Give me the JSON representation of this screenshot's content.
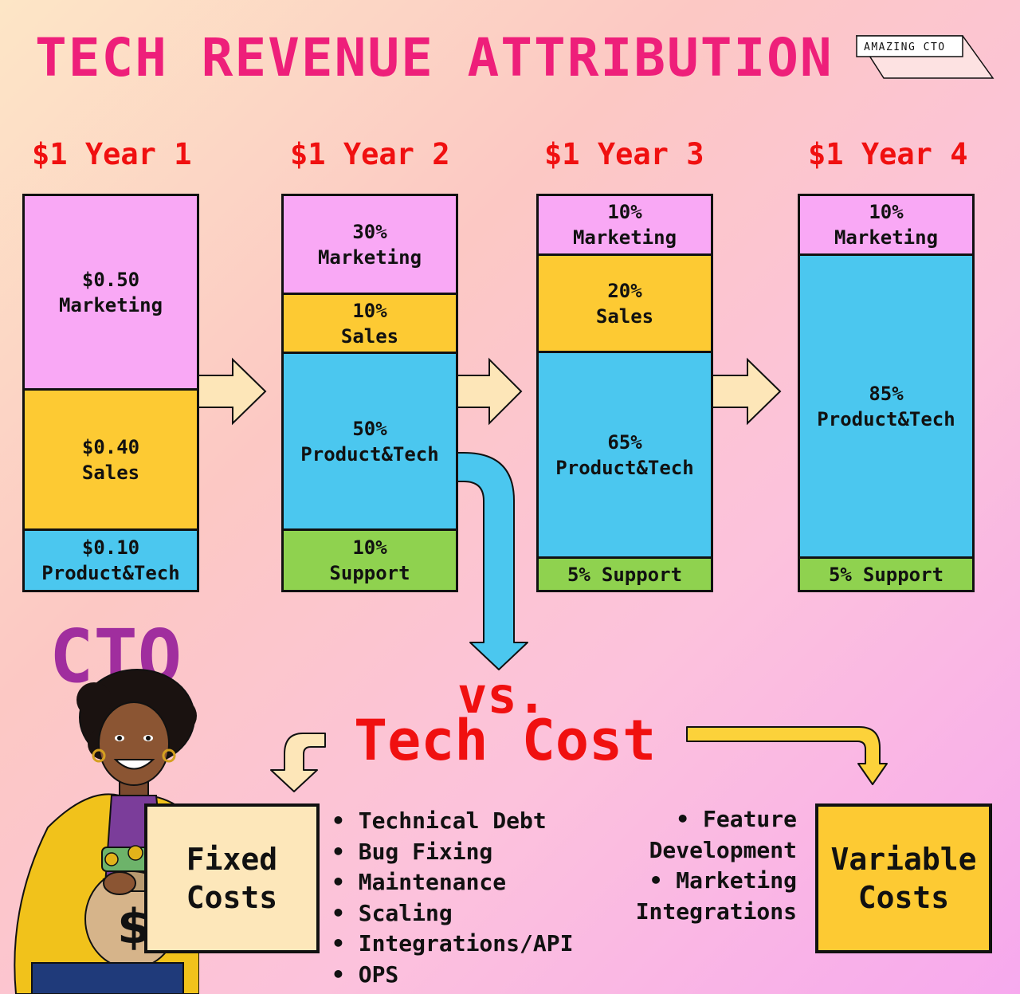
{
  "title": "TECH REVENUE ATTRIBUTION",
  "logo": {
    "text": "AMAZING CTO"
  },
  "years": [
    {
      "label": "$1 Year 1",
      "segments": [
        {
          "value": "$0.50",
          "label": "Marketing",
          "color": "#f9a8f5"
        },
        {
          "value": "$0.40",
          "label": "Sales",
          "color": "#fdca33"
        },
        {
          "value": "$0.10",
          "label": "Product&Tech",
          "color": "#4bc7ef"
        }
      ]
    },
    {
      "label": "$1 Year 2",
      "segments": [
        {
          "value": "30%",
          "label": "Marketing",
          "color": "#f9a8f5"
        },
        {
          "value": "10%",
          "label": "Sales",
          "color": "#fdca33"
        },
        {
          "value": "50%",
          "label": "Product&Tech",
          "color": "#4bc7ef"
        },
        {
          "value": "10%",
          "label": "Support",
          "color": "#8fd24f"
        }
      ]
    },
    {
      "label": "$1 Year 3",
      "segments": [
        {
          "value": "10%",
          "label": "Marketing",
          "color": "#f9a8f5"
        },
        {
          "value": "20%",
          "label": "Sales",
          "color": "#fdca33"
        },
        {
          "value": "65%",
          "label": "Product&Tech",
          "color": "#4bc7ef"
        },
        {
          "value": "5%",
          "label": "Support",
          "color": "#8fd24f"
        }
      ]
    },
    {
      "label": "$1 Year 4",
      "segments": [
        {
          "value": "10%",
          "label": "Marketing",
          "color": "#f9a8f5"
        },
        {
          "value": "85%",
          "label": "Product&Tech",
          "color": "#4bc7ef"
        },
        {
          "value": "5%",
          "label": "Support",
          "color": "#8fd24f"
        }
      ]
    }
  ],
  "cto_label": "CTO",
  "vs_label": "vs.",
  "tech_cost_label": "Tech Cost",
  "fixed_costs": {
    "label_line1": "Fixed",
    "label_line2": "Costs",
    "items": [
      "Technical Debt",
      "Bug Fixing",
      "Maintenance",
      "Scaling",
      "Integrations/API",
      "OPS"
    ]
  },
  "variable_costs": {
    "label_line1": "Variable",
    "label_line2": "Costs",
    "lines": [
      "• Feature",
      "Development",
      "• Marketing",
      "Integrations"
    ]
  },
  "colors": {
    "title": "#ee1f7a",
    "year_label": "#f01010",
    "cto": "#a02e9e",
    "arrow_fill": "#fde6b8",
    "flow_arrow": "#4bc7ef",
    "bent_arrow": "#fcd23a"
  }
}
